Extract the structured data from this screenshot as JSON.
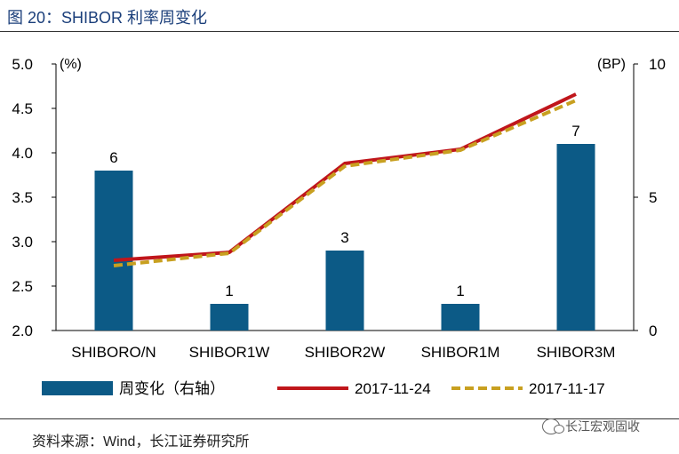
{
  "title": "图 20：SHIBOR 利率周变化",
  "source": "资料来源：Wind，长江证券研究所",
  "watermark": "长江宏观固收",
  "colors": {
    "bar": "#0c5a86",
    "line_1124": "#c0161b",
    "line_1117": "#c8a020",
    "title": "#1a3e7a"
  },
  "chart_data": {
    "type": "bar+line",
    "categories": [
      "SHIBORO/N",
      "SHIBOR1W",
      "SHIBOR2W",
      "SHIBOR1M",
      "SHIBOR3M"
    ],
    "left_axis": {
      "unit": "(%)",
      "ylim": [
        2.0,
        5.0
      ],
      "ticks": [
        "2.0",
        "2.5",
        "3.0",
        "3.5",
        "4.0",
        "4.5",
        "5.0"
      ]
    },
    "right_axis": {
      "unit": "(BP)",
      "ylim": [
        0,
        10
      ],
      "ticks": [
        "0",
        "5",
        "10"
      ]
    },
    "bars": {
      "name": "周变化（右轴）",
      "axis": "right",
      "values": [
        6,
        1,
        3,
        1,
        7
      ],
      "labels": [
        "6",
        "1",
        "3",
        "1",
        "7"
      ]
    },
    "series": [
      {
        "name": "2017-11-24",
        "axis": "left",
        "values": [
          2.79,
          2.88,
          3.88,
          4.04,
          4.66
        ]
      },
      {
        "name": "2017-11-17",
        "axis": "left",
        "values": [
          2.73,
          2.87,
          3.85,
          4.03,
          4.59
        ]
      }
    ],
    "legend": [
      "周变化（右轴）",
      "2017-11-24",
      "2017-11-17"
    ],
    "legend_position": "bottom",
    "grid": false
  }
}
